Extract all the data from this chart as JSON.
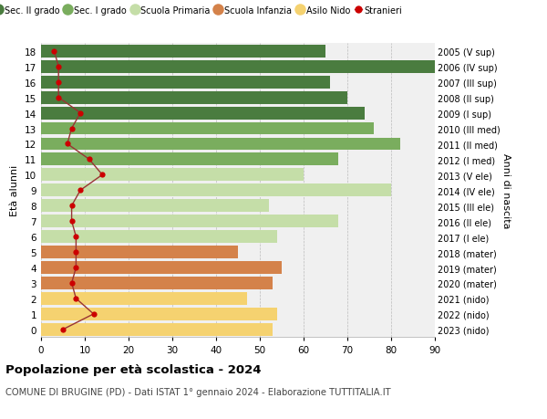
{
  "ages": [
    18,
    17,
    16,
    15,
    14,
    13,
    12,
    11,
    10,
    9,
    8,
    7,
    6,
    5,
    4,
    3,
    2,
    1,
    0
  ],
  "right_labels": [
    "2005 (V sup)",
    "2006 (IV sup)",
    "2007 (III sup)",
    "2008 (II sup)",
    "2009 (I sup)",
    "2010 (III med)",
    "2011 (II med)",
    "2012 (I med)",
    "2013 (V ele)",
    "2014 (IV ele)",
    "2015 (III ele)",
    "2016 (II ele)",
    "2017 (I ele)",
    "2018 (mater)",
    "2019 (mater)",
    "2020 (mater)",
    "2021 (nido)",
    "2022 (nido)",
    "2023 (nido)"
  ],
  "bar_values": [
    65,
    91,
    66,
    70,
    74,
    76,
    82,
    68,
    60,
    80,
    52,
    68,
    54,
    45,
    55,
    53,
    47,
    54,
    53
  ],
  "stranieri": [
    3,
    4,
    4,
    4,
    9,
    7,
    6,
    11,
    14,
    9,
    7,
    7,
    8,
    8,
    8,
    7,
    8,
    12,
    5
  ],
  "bar_colors": [
    "#4a7c3f",
    "#4a7c3f",
    "#4a7c3f",
    "#4a7c3f",
    "#4a7c3f",
    "#7aad5e",
    "#7aad5e",
    "#7aad5e",
    "#c5dea8",
    "#c5dea8",
    "#c5dea8",
    "#c5dea8",
    "#c5dea8",
    "#d4824a",
    "#d4824a",
    "#d4824a",
    "#f5d270",
    "#f5d270",
    "#f5d270"
  ],
  "legend_labels": [
    "Sec. II grado",
    "Sec. I grado",
    "Scuola Primaria",
    "Scuola Infanzia",
    "Asilo Nido",
    "Stranieri"
  ],
  "legend_colors": [
    "#4a7c3f",
    "#7aad5e",
    "#c5dea8",
    "#d4824a",
    "#f5d270",
    "#cc0000"
  ],
  "title": "Popolazione per età scolastica - 2024",
  "subtitle": "COMUNE DI BRUGINE (PD) - Dati ISTAT 1° gennaio 2024 - Elaborazione TUTTITALIA.IT",
  "ylabel_left": "Età alunni",
  "ylabel_right": "Anni di nascita",
  "xlim": [
    0,
    90
  ],
  "xticks": [
    0,
    10,
    20,
    30,
    40,
    50,
    60,
    70,
    80,
    90
  ],
  "bg_color": "#ffffff",
  "bar_bg_color": "#f0f0f0",
  "stranieri_color": "#cc0000",
  "stranieri_line_color": "#993333"
}
